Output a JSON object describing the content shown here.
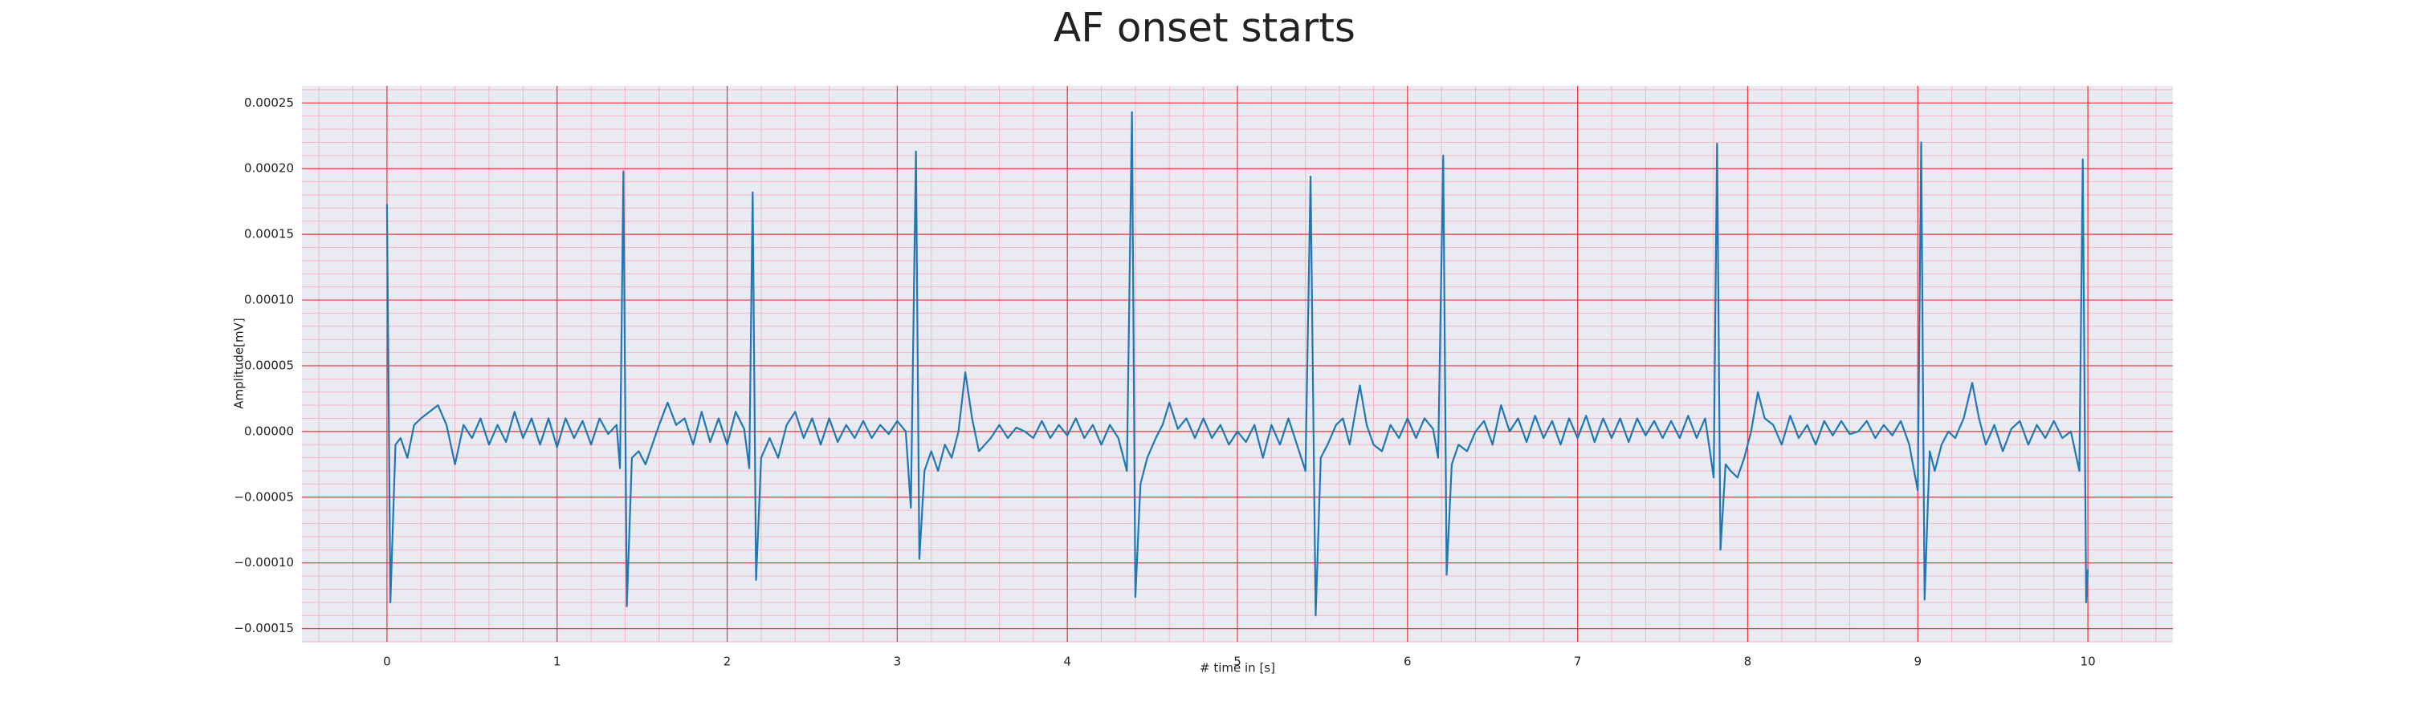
{
  "chart_data": {
    "type": "line",
    "title": "AF onset starts",
    "xlabel": "# time in [s]",
    "ylabel": "Amplitude[mV]",
    "color": "#1f77b4",
    "grid": true,
    "minor_grid": true,
    "xlim": [
      -0.5,
      10.5
    ],
    "xticks": [
      0,
      1,
      2,
      3,
      4,
      5,
      6,
      7,
      8,
      9,
      10
    ],
    "ylim": [
      -0.00016,
      0.000263
    ],
    "yticks": [
      {
        "value": -0.00015,
        "label": "−0.00015"
      },
      {
        "value": -0.0001,
        "label": "−0.00010"
      },
      {
        "value": -5e-05,
        "label": "−0.00005"
      },
      {
        "value": 0,
        "label": "0.00000"
      },
      {
        "value": 5e-05,
        "label": "0.00005"
      },
      {
        "value": 0.0001,
        "label": "0.00010"
      },
      {
        "value": 0.00015,
        "label": "0.00015"
      },
      {
        "value": 0.0002,
        "label": "0.00020"
      },
      {
        "value": 0.00025,
        "label": "0.00025"
      }
    ],
    "x": [
      0,
      0.02,
      0.05,
      0.08,
      0.12,
      0.16,
      0.2,
      0.25,
      0.3,
      0.35,
      0.4,
      0.45,
      0.5,
      0.55,
      0.6,
      0.65,
      0.7,
      0.75,
      0.8,
      0.85,
      0.9,
      0.95,
      1.0,
      1.05,
      1.1,
      1.15,
      1.2,
      1.25,
      1.3,
      1.35,
      1.37,
      1.39,
      1.41,
      1.44,
      1.48,
      1.52,
      1.56,
      1.6,
      1.65,
      1.7,
      1.75,
      1.8,
      1.85,
      1.9,
      1.95,
      2.0,
      2.05,
      2.1,
      2.13,
      2.15,
      2.17,
      2.2,
      2.25,
      2.3,
      2.35,
      2.4,
      2.45,
      2.5,
      2.55,
      2.6,
      2.65,
      2.7,
      2.75,
      2.8,
      2.85,
      2.9,
      2.95,
      3.0,
      3.05,
      3.08,
      3.11,
      3.13,
      3.16,
      3.2,
      3.24,
      3.28,
      3.32,
      3.36,
      3.4,
      3.44,
      3.48,
      3.55,
      3.6,
      3.65,
      3.7,
      3.75,
      3.8,
      3.85,
      3.9,
      3.95,
      4.0,
      4.05,
      4.1,
      4.15,
      4.2,
      4.25,
      4.3,
      4.35,
      4.38,
      4.4,
      4.43,
      4.47,
      4.52,
      4.56,
      4.6,
      4.65,
      4.7,
      4.75,
      4.8,
      4.85,
      4.9,
      4.95,
      5.0,
      5.05,
      5.1,
      5.15,
      5.2,
      5.25,
      5.3,
      5.35,
      5.4,
      5.43,
      5.46,
      5.49,
      5.53,
      5.58,
      5.62,
      5.66,
      5.72,
      5.76,
      5.8,
      5.85,
      5.9,
      5.95,
      6.0,
      6.05,
      6.1,
      6.15,
      6.18,
      6.21,
      6.23,
      6.26,
      6.3,
      6.35,
      6.4,
      6.45,
      6.5,
      6.55,
      6.6,
      6.65,
      6.7,
      6.75,
      6.8,
      6.85,
      6.9,
      6.95,
      7.0,
      7.05,
      7.1,
      7.15,
      7.2,
      7.25,
      7.3,
      7.35,
      7.4,
      7.45,
      7.5,
      7.55,
      7.6,
      7.65,
      7.7,
      7.75,
      7.8,
      7.82,
      7.84,
      7.87,
      7.9,
      7.94,
      7.98,
      8.02,
      8.06,
      8.1,
      8.15,
      8.2,
      8.25,
      8.3,
      8.35,
      8.4,
      8.45,
      8.5,
      8.55,
      8.6,
      8.65,
      8.7,
      8.75,
      8.8,
      8.85,
      8.9,
      8.95,
      9.0,
      9.02,
      9.04,
      9.07,
      9.1,
      9.14,
      9.18,
      9.22,
      9.27,
      9.32,
      9.36,
      9.4,
      9.45,
      9.5,
      9.55,
      9.6,
      9.65,
      9.7,
      9.75,
      9.8,
      9.85,
      9.9,
      9.95,
      9.97,
      9.99,
      10.0
    ],
    "values": [
      0.000173,
      -0.00013,
      -1e-05,
      -5e-06,
      -2e-05,
      5e-06,
      1e-05,
      1.5e-05,
      2e-05,
      5e-06,
      -2.5e-05,
      5e-06,
      -5e-06,
      1e-05,
      -1e-05,
      5e-06,
      -8e-06,
      1.5e-05,
      -5e-06,
      1e-05,
      -1e-05,
      1e-05,
      -1.2e-05,
      1e-05,
      -5e-06,
      8e-06,
      -1e-05,
      1e-05,
      -2e-06,
      5e-06,
      -2.8e-05,
      0.000198,
      -0.000133,
      -2e-05,
      -1.5e-05,
      -2.5e-05,
      -1e-05,
      5e-06,
      2.2e-05,
      5e-06,
      1e-05,
      -1e-05,
      1.5e-05,
      -8e-06,
      1e-05,
      -1e-05,
      1.5e-05,
      2e-06,
      -2.8e-05,
      0.000182,
      -0.000113,
      -2e-05,
      -5e-06,
      -2e-05,
      5e-06,
      1.5e-05,
      -5e-06,
      1e-05,
      -1e-05,
      1e-05,
      -8e-06,
      5e-06,
      -5e-06,
      8e-06,
      -5e-06,
      5e-06,
      -2e-06,
      8e-06,
      0,
      -5.8e-05,
      0.000213,
      -9.7e-05,
      -3e-05,
      -1.5e-05,
      -3e-05,
      -1e-05,
      -2e-05,
      0,
      4.5e-05,
      1e-05,
      -1.5e-05,
      -5e-06,
      5e-06,
      -5e-06,
      3e-06,
      0,
      -5e-06,
      8e-06,
      -5e-06,
      5e-06,
      -3e-06,
      1e-05,
      -5e-06,
      5e-06,
      -1e-05,
      5e-06,
      -5e-06,
      -3e-05,
      0.000243,
      -0.000126,
      -4e-05,
      -2e-05,
      -5e-06,
      5e-06,
      2.2e-05,
      2e-06,
      1e-05,
      -5e-06,
      1e-05,
      -5e-06,
      5e-06,
      -1e-05,
      0,
      -8e-06,
      5e-06,
      -2e-05,
      5e-06,
      -1e-05,
      1e-05,
      -1e-05,
      -3e-05,
      0.000194,
      -0.00014,
      -2e-05,
      -1e-05,
      5e-06,
      1e-05,
      -1e-05,
      3.5e-05,
      5e-06,
      -1e-05,
      -1.5e-05,
      5e-06,
      -5e-06,
      1e-05,
      -5e-06,
      1e-05,
      2e-06,
      -2e-05,
      0.00021,
      -0.000109,
      -2.5e-05,
      -1e-05,
      -1.5e-05,
      0,
      8e-06,
      -1e-05,
      2e-05,
      0,
      1e-05,
      -8e-06,
      1.2e-05,
      -5e-06,
      8e-06,
      -1e-05,
      1e-05,
      -5e-06,
      1.2e-05,
      -8e-06,
      1e-05,
      -5e-06,
      1e-05,
      -8e-06,
      1e-05,
      -3e-06,
      8e-06,
      -5e-06,
      8e-06,
      -5e-06,
      1.2e-05,
      -5e-06,
      1e-05,
      -3.5e-05,
      0.000219,
      -9e-05,
      -2.5e-05,
      -3e-05,
      -3.5e-05,
      -2e-05,
      0,
      3e-05,
      1e-05,
      5e-06,
      -1e-05,
      1.2e-05,
      -5e-06,
      5e-06,
      -1e-05,
      8e-06,
      -3e-06,
      8e-06,
      -2e-06,
      0,
      8e-06,
      -5e-06,
      5e-06,
      -3e-06,
      8e-06,
      -1e-05,
      -4.5e-05,
      0.00022,
      -0.000128,
      -1.5e-05,
      -3e-05,
      -1e-05,
      0,
      -5e-06,
      1e-05,
      3.7e-05,
      1e-05,
      -1e-05,
      5e-06,
      -1.5e-05,
      2e-06,
      8e-06,
      -1e-05,
      5e-06,
      -5e-06,
      8e-06,
      -5e-06,
      0,
      -3e-05,
      0.000207,
      -0.00013,
      -0.000105
    ]
  }
}
